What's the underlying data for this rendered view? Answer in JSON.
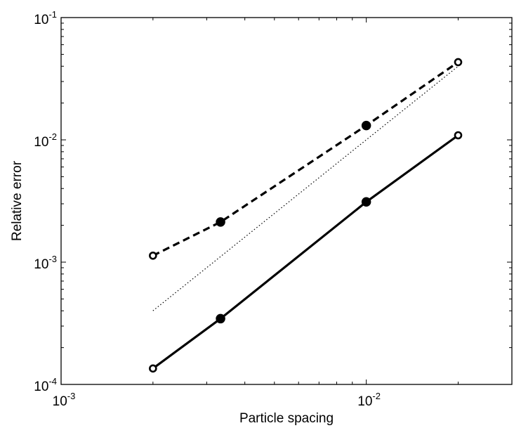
{
  "chart_data": {
    "type": "line",
    "xlabel": "Particle spacing",
    "ylabel": "Relative error",
    "xscale": "log",
    "yscale": "log",
    "xlim": [
      0.001,
      0.03
    ],
    "ylim": [
      0.0001,
      0.1
    ],
    "grid": false,
    "legend": "none",
    "x_ticks": [
      {
        "base": "10",
        "exp": "-3",
        "value": 0.001
      },
      {
        "base": "10",
        "exp": "-2",
        "value": 0.01
      }
    ],
    "y_ticks": [
      {
        "base": "10",
        "exp": "-4",
        "value": 0.0001
      },
      {
        "base": "10",
        "exp": "-3",
        "value": 0.001
      },
      {
        "base": "10",
        "exp": "-2",
        "value": 0.01
      },
      {
        "base": "10",
        "exp": "-1",
        "value": 0.1
      }
    ],
    "series": [
      {
        "style": "dashed",
        "color": "#000000",
        "x": [
          0.002,
          0.00333,
          0.01,
          0.02
        ],
        "y": [
          0.00113,
          0.00213,
          0.0131,
          0.0432
        ],
        "markers": [
          "open",
          "filled",
          "filled",
          "open"
        ]
      },
      {
        "style": "dotted",
        "color": "#000000",
        "x": [
          0.002,
          0.02
        ],
        "y": [
          0.0004,
          0.04
        ],
        "markers": []
      },
      {
        "style": "solid",
        "color": "#000000",
        "x": [
          0.002,
          0.00333,
          0.01,
          0.02
        ],
        "y": [
          0.000135,
          0.000345,
          0.00311,
          0.0109
        ],
        "markers": [
          "open",
          "filled",
          "filled",
          "open"
        ]
      }
    ]
  }
}
